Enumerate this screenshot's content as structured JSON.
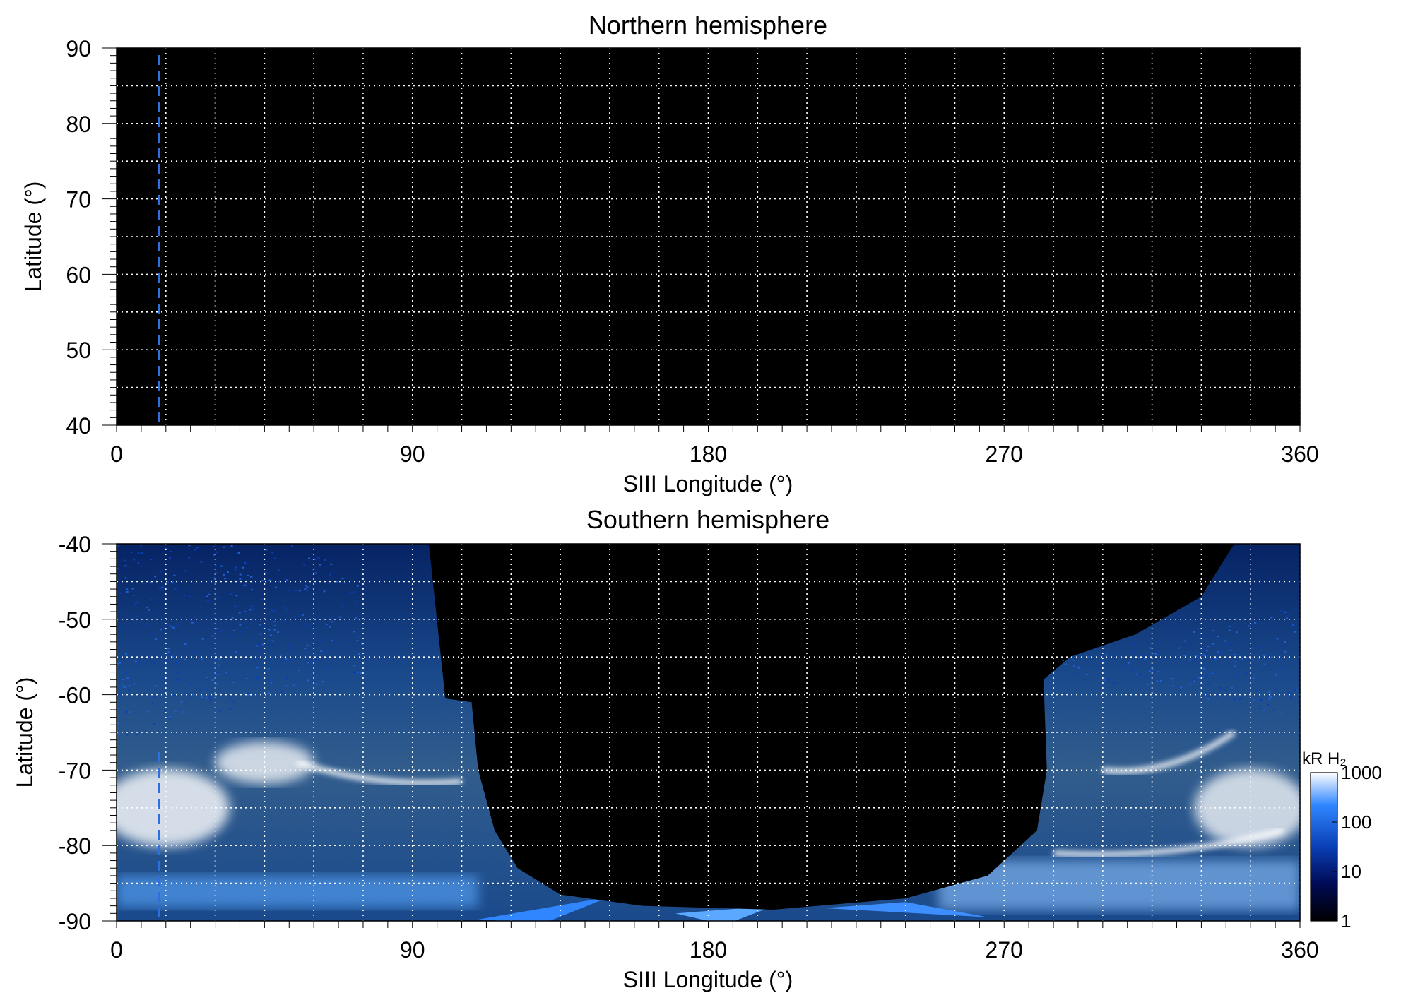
{
  "chart_data": [
    {
      "type": "heatmap",
      "title": "Northern hemisphere",
      "xlabel": "SIII Longitude (°)",
      "ylabel": "Latitude (°)",
      "xlim": [
        0,
        360
      ],
      "ylim": [
        40,
        90
      ],
      "xticks": [
        0,
        90,
        180,
        270,
        360
      ],
      "yticks": [
        40,
        50,
        60,
        70,
        80,
        90
      ],
      "grid": true,
      "background": "#000000",
      "marker_longitude": 13,
      "marker_color": "#2f6fe0",
      "emission": "none"
    },
    {
      "type": "heatmap",
      "title": "Southern hemisphere",
      "xlabel": "SIII Longitude (°)",
      "ylabel": "Latitude (°)",
      "xlim": [
        0,
        360
      ],
      "ylim": [
        -90,
        -40
      ],
      "xticks": [
        0,
        90,
        180,
        270,
        360
      ],
      "yticks": [
        -90,
        -80,
        -70,
        -60,
        -50,
        -40
      ],
      "grid": true,
      "background": "#000000",
      "marker_longitude": 13,
      "marker_color": "#2f6fe0",
      "no_data_region": {
        "boundary": [
          [
            100,
            -60.5
          ],
          [
            108,
            -61
          ],
          [
            110,
            -70
          ],
          [
            115,
            -78
          ],
          [
            122,
            -83
          ],
          [
            135,
            -86.5
          ],
          [
            160,
            -88
          ],
          [
            200,
            -88.5
          ],
          [
            240,
            -87
          ],
          [
            265,
            -84
          ],
          [
            280,
            -78
          ],
          [
            283,
            -70
          ],
          [
            282,
            -58
          ],
          [
            290,
            -55
          ],
          [
            310,
            -52
          ],
          [
            330,
            -47
          ],
          [
            340,
            -40
          ]
        ]
      },
      "bright_arcs": [
        {
          "lon": [
            55,
            105
          ],
          "lat": [
            -69,
            -71.5
          ]
        },
        {
          "lon": [
            300,
            340
          ],
          "lat": [
            -70,
            -65
          ]
        },
        {
          "lon": [
            285,
            355
          ],
          "lat": [
            -81,
            -78
          ]
        }
      ],
      "colorbar": {
        "label": "kR H₂",
        "ticks": [
          1,
          10,
          100,
          1000
        ],
        "scale": "log",
        "colors": [
          "#000000",
          "#000a55",
          "#0a3fb5",
          "#2f86ff",
          "#ffffff"
        ]
      }
    }
  ]
}
